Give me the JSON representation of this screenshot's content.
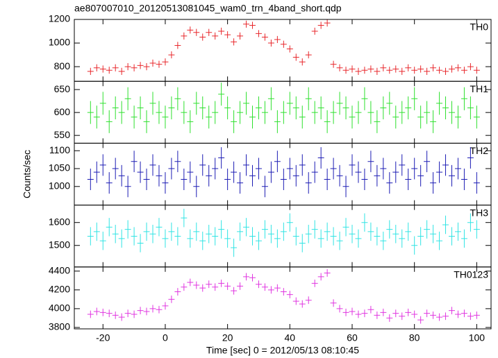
{
  "chart_data": [
    {
      "type": "step",
      "title": "ae807007010_20120513081045_wam0_trn_4band_short.qdp",
      "series": [
        {
          "name": "TH0",
          "color": "#e8272b",
          "values": [
            760,
            790,
            780,
            770,
            790,
            760,
            800,
            790,
            810,
            800,
            830,
            820,
            840,
            900,
            980,
            1060,
            1110,
            1090,
            1050,
            1090,
            1060,
            1100,
            1070,
            1010,
            1060,
            1160,
            1150,
            1080,
            1050,
            1000,
            1030,
            990,
            950,
            880,
            840,
            900,
            1100,
            1150,
            1170,
            820,
            790,
            770,
            780,
            760,
            770,
            780,
            760,
            790,
            770,
            780,
            760,
            790,
            770,
            780,
            760,
            790,
            770,
            760,
            780,
            790,
            770,
            800,
            770
          ],
          "error": 30
        }
      ],
      "ylim": [
        676,
        1200
      ],
      "yticks": [
        800,
        1000,
        1200
      ]
    },
    {
      "type": "step",
      "series": [
        {
          "name": "TH1",
          "color": "#2ee02e",
          "values": [
            600,
            590,
            620,
            580,
            610,
            600,
            630,
            590,
            610,
            580,
            620,
            600,
            590,
            610,
            630,
            600,
            580,
            620,
            610,
            590,
            600,
            640,
            610,
            580,
            600,
            620,
            590,
            610,
            600,
            630,
            580,
            600,
            620,
            610,
            590,
            630,
            600,
            610,
            580,
            600,
            620,
            610,
            590,
            600,
            630,
            600,
            580,
            610,
            620,
            590,
            600,
            610,
            630,
            590,
            600,
            580,
            620,
            610,
            600,
            590,
            630,
            610,
            590
          ],
          "error": 25
        }
      ],
      "ylim": [
        533,
        668
      ],
      "yticks": [
        550,
        600,
        650
      ]
    },
    {
      "type": "step",
      "ylabel": "Counts/sec",
      "series": [
        {
          "name": "TH2",
          "color": "#1c1cb4",
          "values": [
            1020,
            1040,
            1060,
            1010,
            1050,
            1030,
            1000,
            1070,
            1040,
            1020,
            1060,
            1030,
            1010,
            1050,
            1070,
            1020,
            1040,
            1000,
            1060,
            1030,
            1050,
            1080,
            1020,
            1040,
            1010,
            1060,
            1030,
            1050,
            1000,
            1040,
            1070,
            1020,
            1050,
            1030,
            1060,
            1010,
            1040,
            1080,
            1020,
            1050,
            1030,
            1000,
            1060,
            1040,
            1020,
            1070,
            1030,
            1050,
            1010,
            1040,
            1060,
            1020,
            1050,
            1030,
            1070,
            1010,
            1040,
            1060,
            1030,
            1050,
            1020,
            1080,
            1010
          ],
          "error": 30
        }
      ],
      "ylim": [
        948,
        1121
      ],
      "yticks": [
        1000,
        1050,
        1100
      ]
    },
    {
      "type": "step",
      "series": [
        {
          "name": "TH3",
          "color": "#30e4e4",
          "values": [
            1540,
            1560,
            1520,
            1580,
            1550,
            1530,
            1570,
            1540,
            1510,
            1560,
            1550,
            1580,
            1530,
            1560,
            1540,
            1620,
            1530,
            1560,
            1520,
            1550,
            1540,
            1570,
            1530,
            1490,
            1560,
            1580,
            1540,
            1520,
            1570,
            1550,
            1530,
            1560,
            1600,
            1540,
            1510,
            1550,
            1570,
            1530,
            1560,
            1540,
            1520,
            1580,
            1550,
            1530,
            1600,
            1560,
            1540,
            1520,
            1570,
            1550,
            1530,
            1560,
            1500,
            1540,
            1570,
            1550,
            1520,
            1590,
            1540,
            1560,
            1530,
            1600,
            1570
          ],
          "error": 40
        }
      ],
      "ylim": [
        1406,
        1676
      ],
      "yticks": [
        1500,
        1600
      ]
    },
    {
      "type": "step",
      "xlabel": "Time [sec] 0 = 2012/05/13 08:10:45",
      "x": [
        -24,
        -22,
        -20,
        -18,
        -16,
        -14,
        -12,
        -10,
        -8,
        -6,
        -4,
        -2,
        0,
        2,
        4,
        6,
        8,
        10,
        12,
        14,
        16,
        18,
        20,
        22,
        24,
        26,
        28,
        30,
        32,
        34,
        36,
        38,
        40,
        42,
        44,
        46,
        48,
        50,
        52,
        54,
        56,
        58,
        60,
        62,
        64,
        66,
        68,
        70,
        72,
        74,
        76,
        78,
        80,
        82,
        84,
        86,
        88,
        90,
        92,
        94,
        96,
        98,
        100
      ],
      "xlim": [
        -29.2,
        104.6
      ],
      "xticks": [
        -20,
        0,
        20,
        40,
        60,
        80,
        100
      ],
      "series": [
        {
          "name": "TH0123",
          "color": "#e036e0",
          "values": [
            3940,
            3970,
            3960,
            3950,
            3930,
            3910,
            3950,
            3940,
            3980,
            3970,
            4000,
            3990,
            4030,
            4100,
            4180,
            4230,
            4280,
            4250,
            4220,
            4260,
            4230,
            4270,
            4240,
            4190,
            4240,
            4340,
            4330,
            4260,
            4230,
            4200,
            4220,
            4180,
            4150,
            4080,
            4050,
            4090,
            4270,
            4340,
            4380,
            4060,
            4000,
            3960,
            3970,
            3940,
            3950,
            3990,
            3930,
            3960,
            3900,
            3950,
            3920,
            3960,
            3940,
            3880,
            3950,
            3930,
            3910,
            3920,
            3980,
            3940,
            3950,
            3920,
            3930
          ],
          "error": 40
        }
      ],
      "ylim": [
        3785,
        4444
      ],
      "yticks": [
        3800,
        4000,
        4200,
        4400
      ]
    }
  ]
}
